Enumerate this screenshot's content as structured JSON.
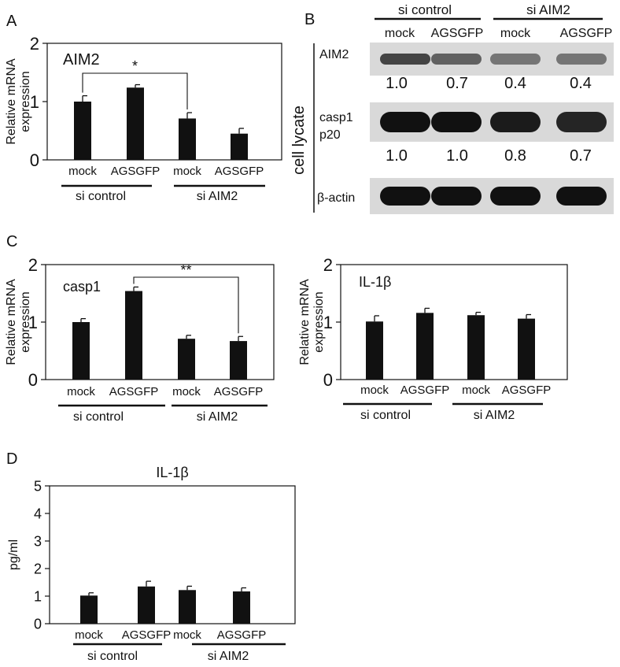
{
  "panels": {
    "A": {
      "letter": "A"
    },
    "B": {
      "letter": "B"
    },
    "C": {
      "letter": "C"
    },
    "D": {
      "letter": "D"
    }
  },
  "western_blot": {
    "groups": [
      {
        "label": "si control",
        "lanes": [
          "mock",
          "AGSGFP"
        ]
      },
      {
        "label": "si AIM2",
        "lanes": [
          "mock",
          "AGSGFP"
        ]
      }
    ],
    "lane_labels": [
      "mock",
      "AGSGFP",
      "mock",
      "AGSGFP"
    ],
    "side_label": "cell lycate",
    "rows": [
      {
        "label": "AIM2",
        "quant": [
          "1.0",
          "0.7",
          "0.4",
          "0.4"
        ]
      },
      {
        "label": "casp1",
        "label2": "p20",
        "quant": [
          "1.0",
          "1.0",
          "0.8",
          "0.7"
        ]
      },
      {
        "label": "β-actin",
        "quant": []
      }
    ]
  },
  "chart_data": [
    {
      "id": "A",
      "type": "bar",
      "title": "AIM2",
      "ylabel": "Relative mRNA expression",
      "ylim": [
        0,
        2
      ],
      "yticks": [
        0,
        1,
        2
      ],
      "categories": [
        "mock",
        "AGSGFP",
        "mock",
        "AGSGFP"
      ],
      "groups": [
        "si control",
        "si AIM2"
      ],
      "values": [
        1.0,
        1.24,
        0.71,
        0.45
      ],
      "errors": [
        0.1,
        0.05,
        0.1,
        0.09
      ],
      "significance": {
        "from": 0,
        "to": 2,
        "label": "*"
      },
      "bar_color": "#111111"
    },
    {
      "id": "C1",
      "type": "bar",
      "title": "casp1",
      "ylabel": "Relative mRNA expression",
      "ylim": [
        0,
        2
      ],
      "yticks": [
        0,
        1,
        2
      ],
      "categories": [
        "mock",
        "AGSGFP",
        "mock",
        "AGSGFP"
      ],
      "groups": [
        "si control",
        "si AIM2"
      ],
      "values": [
        1.0,
        1.54,
        0.71,
        0.67
      ],
      "errors": [
        0.06,
        0.07,
        0.06,
        0.08
      ],
      "significance": {
        "from": 1,
        "to": 3,
        "label": "**"
      },
      "bar_color": "#111111"
    },
    {
      "id": "C2",
      "type": "bar",
      "title": "IL-1β",
      "ylabel": "Relative mRNA expression",
      "ylim": [
        0,
        2
      ],
      "yticks": [
        0,
        1,
        2
      ],
      "categories": [
        "mock",
        "AGSGFP",
        "mock",
        "AGSGFP"
      ],
      "groups": [
        "si control",
        "si AIM2"
      ],
      "values": [
        1.01,
        1.16,
        1.12,
        1.06
      ],
      "errors": [
        0.1,
        0.08,
        0.05,
        0.07
      ],
      "bar_color": "#111111"
    },
    {
      "id": "D",
      "type": "bar",
      "title": "IL-1β",
      "ylabel": "pg/ml",
      "ylim": [
        0,
        5
      ],
      "yticks": [
        0,
        1,
        2,
        3,
        4,
        5
      ],
      "categories": [
        "mock",
        "AGSGFP",
        "mock",
        "AGSGFP"
      ],
      "groups": [
        "si control",
        "si AIM2"
      ],
      "values": [
        1.02,
        1.35,
        1.22,
        1.17
      ],
      "errors": [
        0.1,
        0.19,
        0.14,
        0.13
      ],
      "bar_color": "#111111"
    }
  ]
}
